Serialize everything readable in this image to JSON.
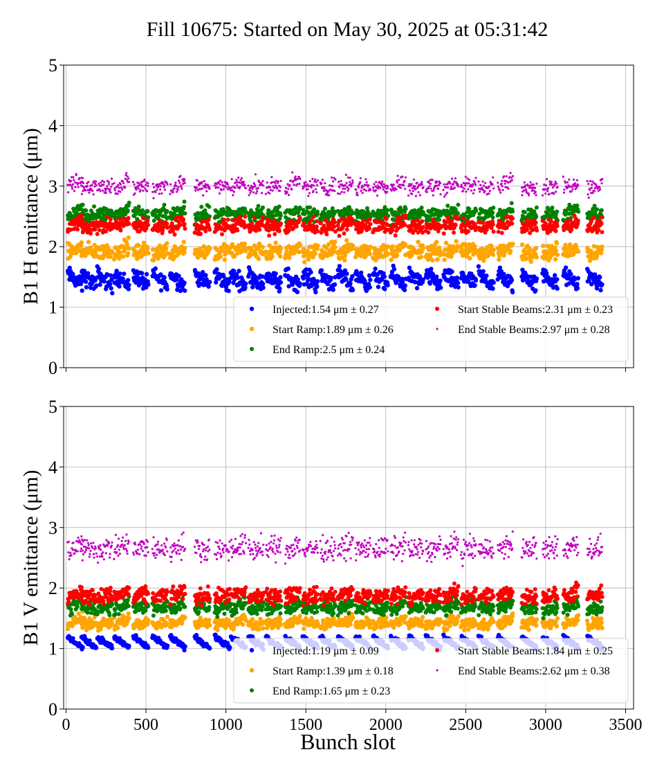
{
  "title": "Fill 10675: Started on May 30, 2025 at 05:31:42",
  "xlabel": "Bunch slot",
  "colors": {
    "injected": "#0000ff",
    "start_ramp": "#ffa500",
    "end_ramp": "#008000",
    "start_stable": "#ff0000",
    "end_stable": "#c000c0",
    "grid": "#b0b0b0"
  },
  "chart_data": [
    {
      "type": "scatter",
      "ylabel": "B1 H emittance (μm)",
      "xlim": [
        -15,
        3550
      ],
      "ylim": [
        0,
        5
      ],
      "xticks": [
        0,
        500,
        1000,
        1500,
        2000,
        2500,
        3000,
        3500
      ],
      "yticks": [
        0,
        1,
        2,
        3,
        4,
        5
      ],
      "show_xtick_labels": false,
      "grid": true,
      "legend_position": "lower-right",
      "legend_columns": 2,
      "series": [
        {
          "key": "injected",
          "label": "Injected:1.54 μm ± 0.27",
          "color": "#0000ff",
          "mean": 1.54,
          "std": 0.27,
          "marker_size": 3.2
        },
        {
          "key": "start_ramp",
          "label": "Start Ramp:1.89 μm ± 0.26",
          "color": "#ffa500",
          "mean": 1.89,
          "std": 0.26,
          "marker_size": 3.2
        },
        {
          "key": "end_ramp",
          "label": "End Ramp:2.5 μm ± 0.24",
          "color": "#008000",
          "mean": 2.5,
          "std": 0.24,
          "marker_size": 3.0
        },
        {
          "key": "start_stable",
          "label": "Start Stable Beams:2.31 μm ± 0.23",
          "color": "#ff0000",
          "mean": 2.31,
          "std": 0.23,
          "marker_size": 3.0
        },
        {
          "key": "end_stable",
          "label": "End Stable Beams:2.97 μm ± 0.28",
          "color": "#c000c0",
          "mean": 2.97,
          "std": 0.28,
          "marker_size": 1.6
        }
      ]
    },
    {
      "type": "scatter",
      "ylabel": "B1 V emittance (μm)",
      "xlim": [
        -15,
        3550
      ],
      "ylim": [
        0,
        5
      ],
      "xticks": [
        0,
        500,
        1000,
        1500,
        2000,
        2500,
        3000,
        3500
      ],
      "yticks": [
        0,
        1,
        2,
        3,
        4,
        5
      ],
      "show_xtick_labels": true,
      "grid": true,
      "legend_position": "lower-right",
      "legend_columns": 2,
      "series": [
        {
          "key": "injected",
          "label": "Injected:1.19 μm ± 0.09",
          "color": "#0000ff",
          "mean": 1.19,
          "std": 0.09,
          "marker_size": 3.2
        },
        {
          "key": "start_ramp",
          "label": "Start Ramp:1.39 μm ± 0.18",
          "color": "#ffa500",
          "mean": 1.39,
          "std": 0.18,
          "marker_size": 3.2
        },
        {
          "key": "end_ramp",
          "label": "End Ramp:1.65 μm ± 0.23",
          "color": "#008000",
          "mean": 1.65,
          "std": 0.23,
          "marker_size": 3.0
        },
        {
          "key": "start_stable",
          "label": "Start Stable Beams:1.84 μm ± 0.25",
          "color": "#ff0000",
          "mean": 1.84,
          "std": 0.25,
          "marker_size": 3.0
        },
        {
          "key": "end_stable",
          "label": "End Stable Beams:2.62 μm ± 0.38",
          "color": "#c000c0",
          "mean": 2.62,
          "std": 0.38,
          "marker_size": 1.6
        }
      ]
    }
  ]
}
